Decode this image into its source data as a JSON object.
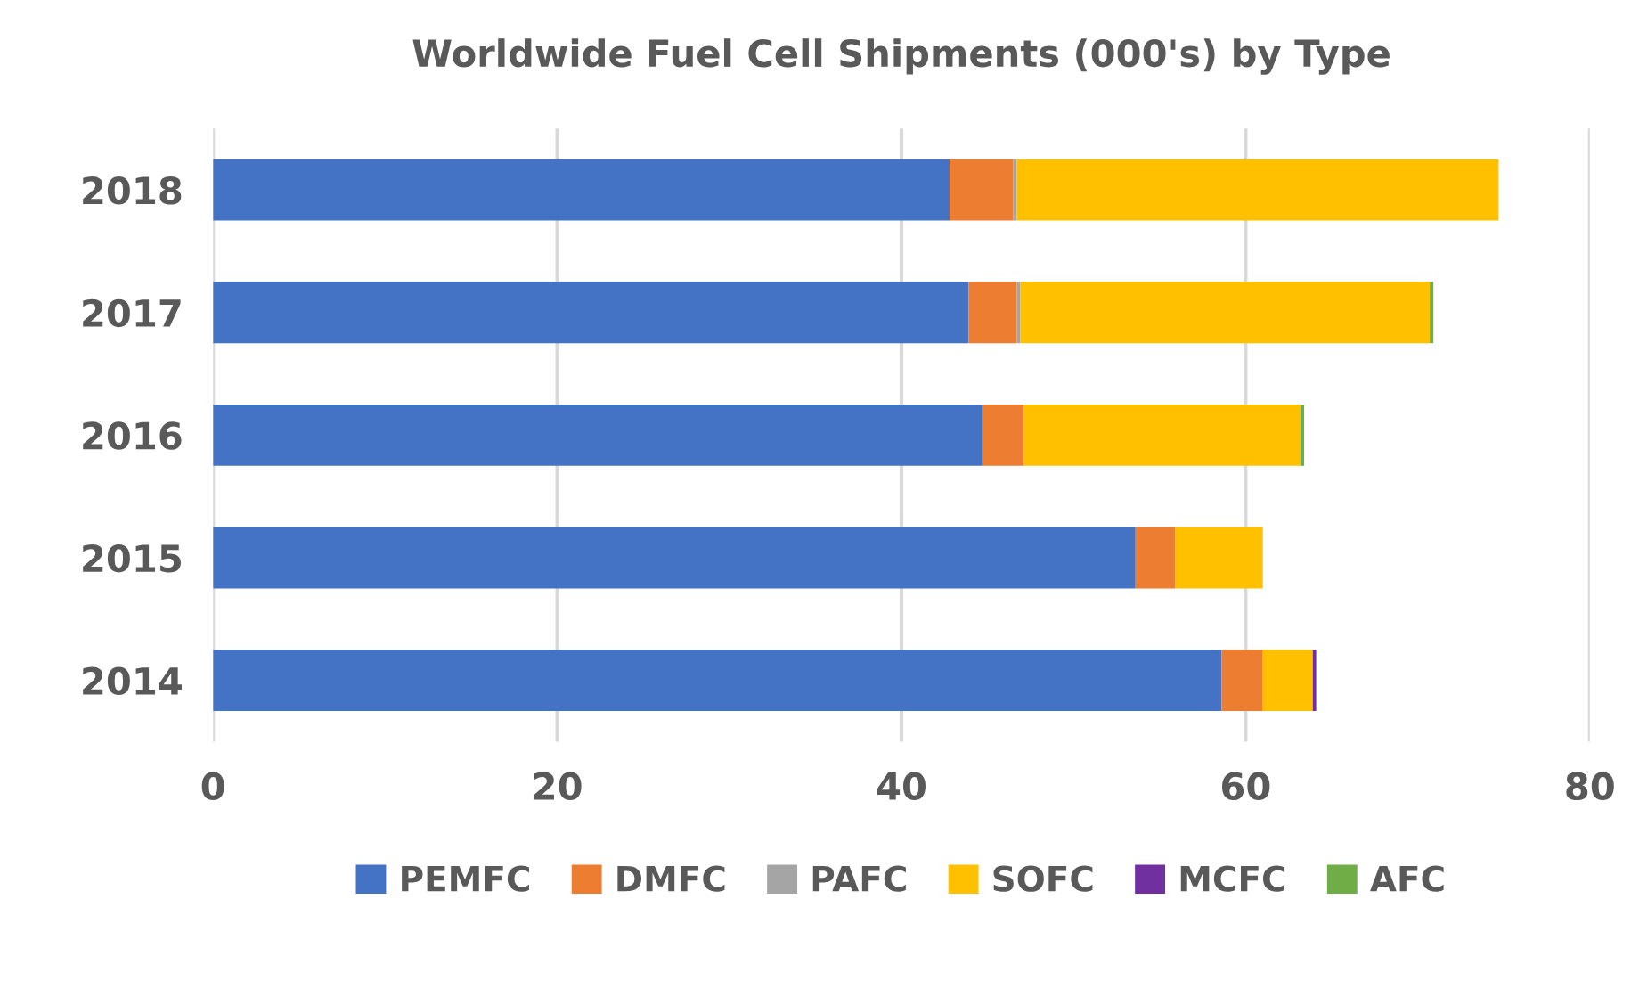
{
  "chart_data": {
    "type": "bar",
    "orientation": "horizontal",
    "stacked": true,
    "title": "Worldwide Fuel Cell Shipments (000's) by Type",
    "categories": [
      "2018",
      "2017",
      "2016",
      "2015",
      "2014"
    ],
    "series": [
      {
        "name": "PEMFC",
        "color": "#4472c4",
        "values": [
          42.8,
          43.9,
          44.7,
          53.6,
          58.6
        ]
      },
      {
        "name": "DMFC",
        "color": "#ed7d31",
        "values": [
          3.7,
          2.8,
          2.4,
          2.3,
          2.4
        ]
      },
      {
        "name": "PAFC",
        "color": "#a5a5a5",
        "values": [
          0.2,
          0.2,
          null,
          null,
          null
        ]
      },
      {
        "name": "SOFC",
        "color": "#ffc000",
        "values": [
          28.0,
          23.8,
          16.1,
          5.1,
          2.9
        ]
      },
      {
        "name": "MCFC",
        "color": "#7030a0",
        "values": [
          null,
          null,
          null,
          null,
          0.2
        ]
      },
      {
        "name": "AFC",
        "color": "#70ad47",
        "values": [
          null,
          0.2,
          0.2,
          null,
          null
        ]
      }
    ],
    "xlim": [
      0,
      80
    ],
    "xticks": [
      0,
      20,
      40,
      60,
      80
    ],
    "grid": "x",
    "legend": "bottom"
  }
}
